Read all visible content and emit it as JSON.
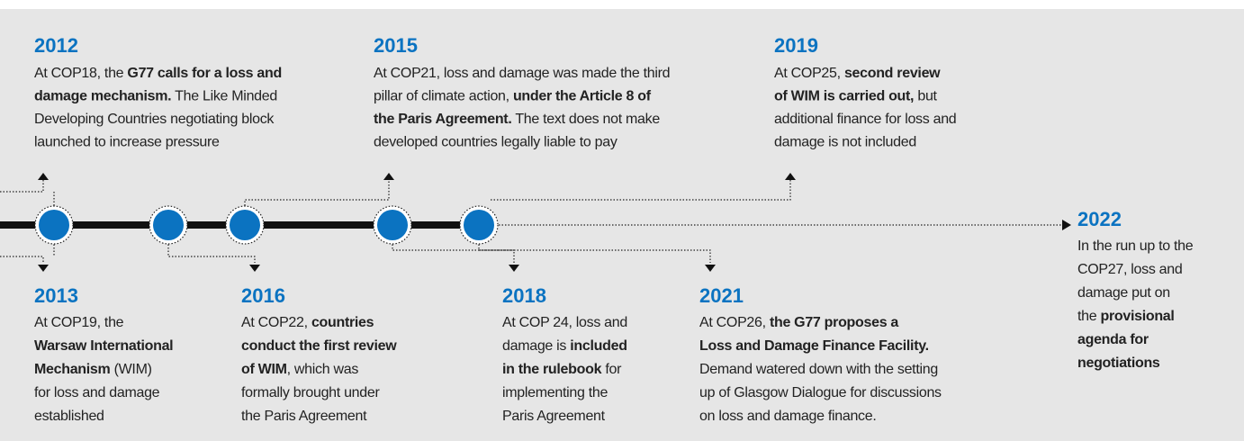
{
  "events": [
    {
      "year": "2012",
      "lines": [
        [
          {
            "text": "At COP18, the "
          },
          {
            "text": "G77 calls for a loss and",
            "bold": true
          }
        ],
        [
          {
            "text": "damage mechanism.",
            "bold": true
          },
          {
            "text": " The Like Minded"
          }
        ],
        [
          {
            "text": "Developing Countries negotiating block"
          }
        ],
        [
          {
            "text": "launched to increase pressure"
          }
        ]
      ]
    },
    {
      "year": "2013",
      "lines": [
        [
          {
            "text": "At COP19, the"
          }
        ],
        [
          {
            "text": "Warsaw International",
            "bold": true
          }
        ],
        [
          {
            "text": "Mechanism",
            "bold": true
          },
          {
            "text": " (WIM)"
          }
        ],
        [
          {
            "text": "for loss and damage"
          }
        ],
        [
          {
            "text": "established"
          }
        ]
      ]
    },
    {
      "year": "2015",
      "lines": [
        [
          {
            "text": "At COP21, loss and damage was made the third"
          }
        ],
        [
          {
            "text": "pillar of climate action, "
          },
          {
            "text": "under the Article 8 of",
            "bold": true
          }
        ],
        [
          {
            "text": "the Paris Agreement.",
            "bold": true
          },
          {
            "text": " The text does not make"
          }
        ],
        [
          {
            "text": "developed countries legally liable to pay"
          }
        ]
      ]
    },
    {
      "year": "2016",
      "lines": [
        [
          {
            "text": "At COP22, "
          },
          {
            "text": "countries",
            "bold": true
          }
        ],
        [
          {
            "text": "conduct the first review",
            "bold": true
          }
        ],
        [
          {
            "text": "of WIM",
            "bold": true
          },
          {
            "text": ", which was"
          }
        ],
        [
          {
            "text": "formally brought under"
          }
        ],
        [
          {
            "text": "the Paris Agreement"
          }
        ]
      ]
    },
    {
      "year": "2018",
      "lines": [
        [
          {
            "text": "At COP 24, loss and"
          }
        ],
        [
          {
            "text": "damage is "
          },
          {
            "text": "included",
            "bold": true
          }
        ],
        [
          {
            "text": "in the rulebook",
            "bold": true
          },
          {
            "text": " for"
          }
        ],
        [
          {
            "text": "implementing the"
          }
        ],
        [
          {
            "text": "Paris Agreement"
          }
        ]
      ]
    },
    {
      "year": "2019",
      "lines": [
        [
          {
            "text": "At COP25, "
          },
          {
            "text": "second review",
            "bold": true
          }
        ],
        [
          {
            "text": "of WIM is carried out,",
            "bold": true
          },
          {
            "text": " but"
          }
        ],
        [
          {
            "text": "additional finance for loss and"
          }
        ],
        [
          {
            "text": "damage is not included"
          }
        ]
      ]
    },
    {
      "year": "2021",
      "lines": [
        [
          {
            "text": "At COP26, "
          },
          {
            "text": "the G77 proposes a",
            "bold": true
          }
        ],
        [
          {
            "text": "Loss and Damage Finance Facility.",
            "bold": true
          }
        ],
        [
          {
            "text": "Demand watered down with the setting"
          }
        ],
        [
          {
            "text": "up of Glasgow Dialogue for discussions"
          }
        ],
        [
          {
            "text": "on loss and damage finance."
          }
        ]
      ]
    },
    {
      "year": "2022",
      "lines": [
        [
          {
            "text": "In the run up to the"
          }
        ],
        [
          {
            "text": "COP27, loss and"
          }
        ],
        [
          {
            "text": "damage put on"
          }
        ],
        [
          {
            "text": "the "
          },
          {
            "text": "provisional",
            "bold": true
          }
        ],
        [
          {
            "text": "agenda for",
            "bold": true
          }
        ],
        [
          {
            "text": "negotiations",
            "bold": true
          }
        ]
      ]
    }
  ]
}
